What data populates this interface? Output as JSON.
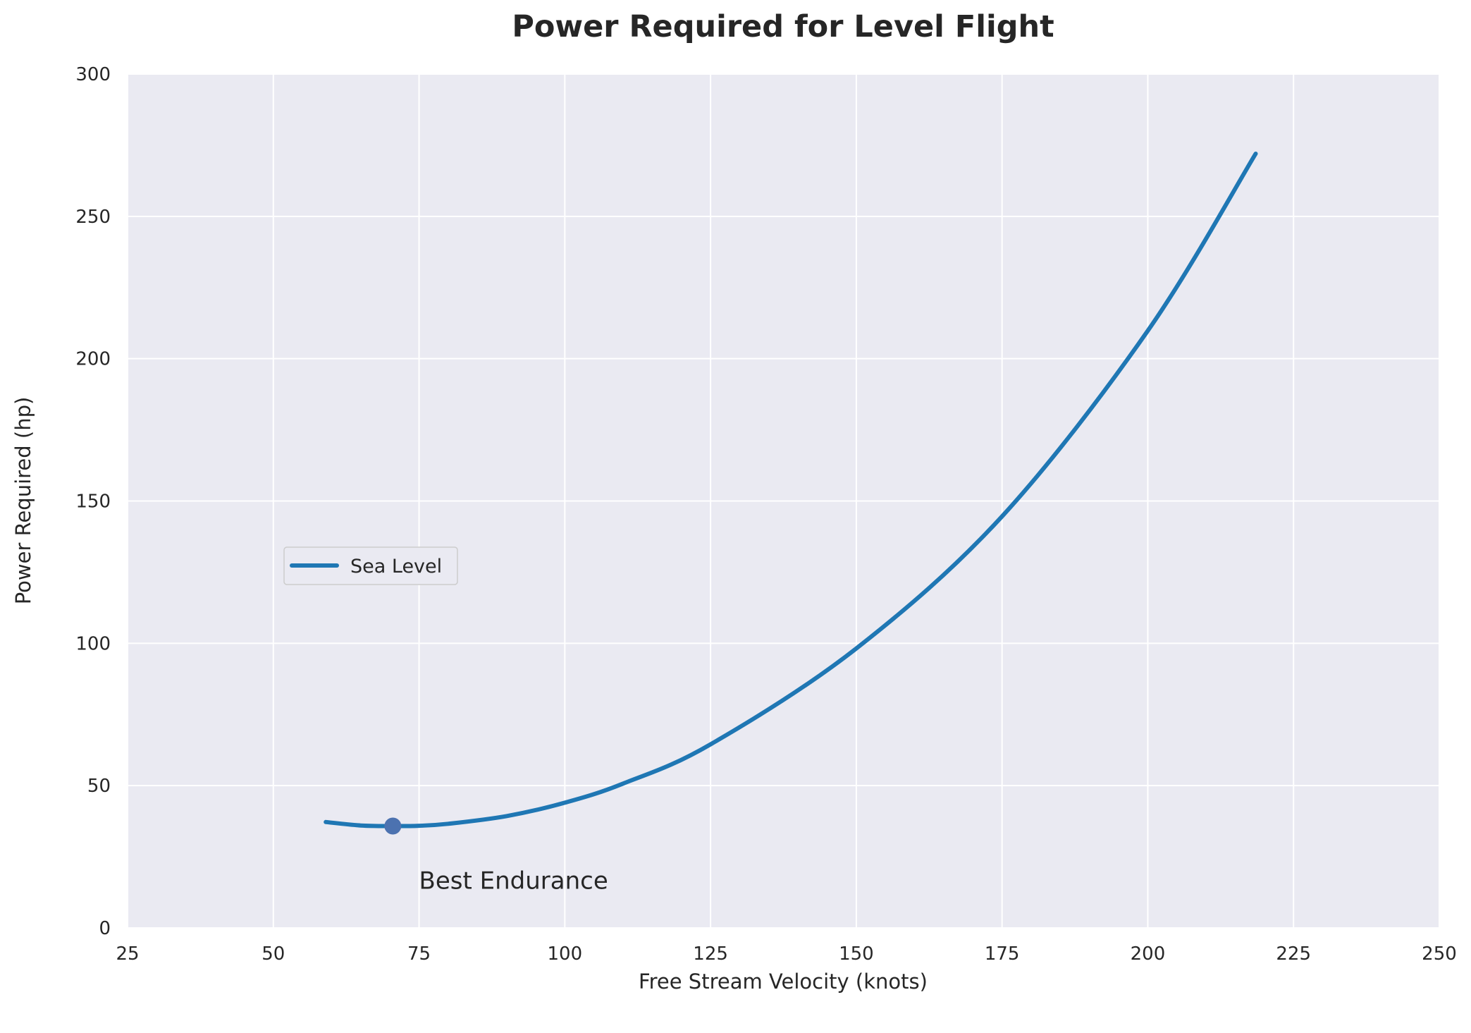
{
  "chart_data": {
    "type": "line",
    "title": "Power Required for Level Flight",
    "xlabel": "Free Stream Velocity (knots)",
    "ylabel": "Power Required (hp)",
    "xlim": [
      25,
      250
    ],
    "ylim": [
      0,
      300
    ],
    "xticks": [
      25,
      50,
      75,
      100,
      125,
      150,
      175,
      200,
      225,
      250
    ],
    "yticks": [
      0,
      50,
      100,
      150,
      200,
      250,
      300
    ],
    "grid": true,
    "legend_position": "center-left",
    "colors": {
      "background": "#eaeaf2",
      "grid": "#ffffff",
      "line": "#1f77b4",
      "marker": "#4c72b0"
    },
    "series": [
      {
        "name": "Sea Level",
        "x": [
          59,
          65,
          70.5,
          75,
          80,
          90,
          100,
          110,
          125,
          150,
          175,
          200,
          218.5
        ],
        "y": [
          37.2,
          36.0,
          35.8,
          35.9,
          36.6,
          39.3,
          44.0,
          50.7,
          64.5,
          98.2,
          144.6,
          209.8,
          272
        ]
      }
    ],
    "annotations": [
      {
        "text": "Best Endurance",
        "point": {
          "x": 70.5,
          "y": 35.8
        },
        "text_at": {
          "x": 75,
          "y": 15
        }
      }
    ]
  }
}
